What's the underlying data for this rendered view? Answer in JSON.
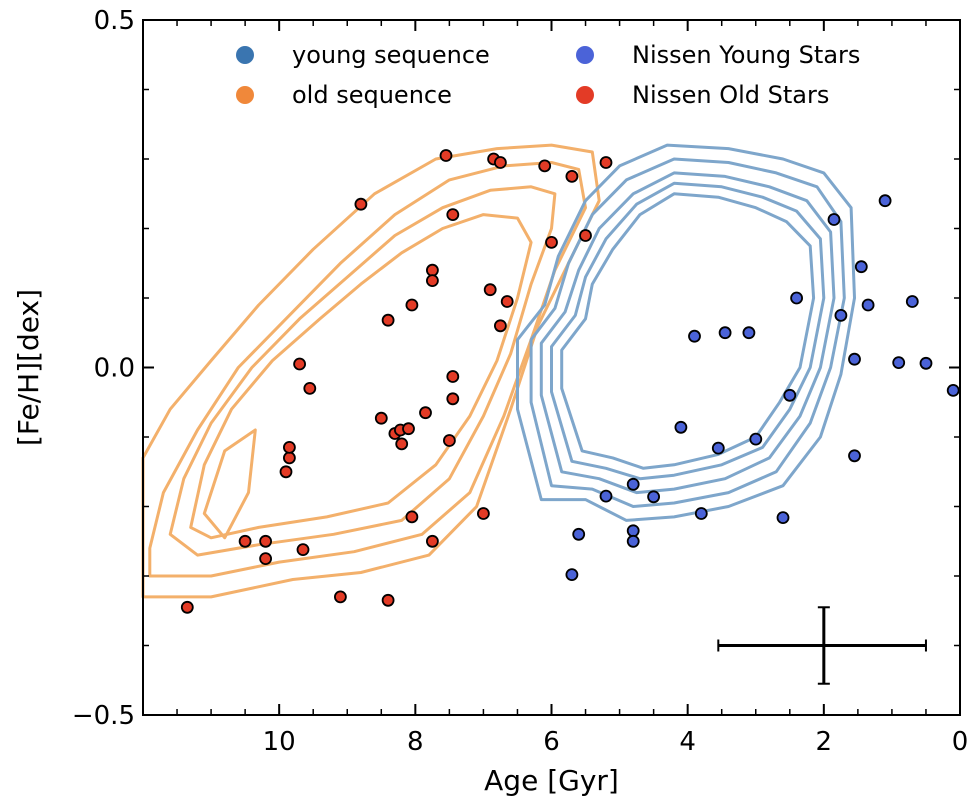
{
  "chart_data": {
    "type": "scatter",
    "xlabel": "Age [Gyr]",
    "ylabel": "[Fe/H][dex]",
    "xlim": [
      12,
      0
    ],
    "ylim": [
      -0.5,
      0.5
    ],
    "x_reversed": true,
    "x_ticks": [
      10,
      8,
      6,
      4,
      2,
      0
    ],
    "x_tick_labels": [
      "10",
      "8",
      "6",
      "4",
      "2",
      "0"
    ],
    "y_ticks": [
      -0.5,
      0.0,
      0.5
    ],
    "y_tick_labels": [
      "−0.5",
      "0.0",
      "0.5"
    ],
    "grid": false,
    "legend": {
      "placement": "top-center",
      "entries": [
        {
          "label": "young sequence",
          "color": "#3a75b0"
        },
        {
          "label": "old sequence",
          "color": "#f0883a"
        },
        {
          "label": "Nissen Young Stars",
          "color": "#4b63d8"
        },
        {
          "label": "Nissen Old Stars",
          "color": "#e33b26"
        }
      ]
    },
    "colors": {
      "young_contour": "#7ea6cb",
      "old_contour": "#f3b06b",
      "young_points": "#4b63d8",
      "old_points": "#e33b26"
    },
    "series": [
      {
        "name": "Nissen Old Stars",
        "points": [
          [
            11.35,
            -0.345
          ],
          [
            10.5,
            -0.25
          ],
          [
            10.2,
            -0.25
          ],
          [
            10.2,
            -0.275
          ],
          [
            9.9,
            -0.15
          ],
          [
            9.85,
            -0.13
          ],
          [
            9.85,
            -0.115
          ],
          [
            9.65,
            -0.262
          ],
          [
            9.7,
            0.005
          ],
          [
            9.55,
            -0.03
          ],
          [
            9.1,
            -0.33
          ],
          [
            8.8,
            0.235
          ],
          [
            8.5,
            -0.073
          ],
          [
            8.4,
            0.068
          ],
          [
            8.4,
            -0.335
          ],
          [
            8.3,
            -0.095
          ],
          [
            8.22,
            -0.09
          ],
          [
            8.2,
            -0.11
          ],
          [
            8.1,
            -0.088
          ],
          [
            8.05,
            0.09
          ],
          [
            8.05,
            -0.215
          ],
          [
            7.85,
            -0.065
          ],
          [
            7.75,
            0.14
          ],
          [
            7.75,
            0.125
          ],
          [
            7.75,
            -0.25
          ],
          [
            7.55,
            0.305
          ],
          [
            7.5,
            -0.105
          ],
          [
            7.45,
            0.22
          ],
          [
            7.45,
            -0.045
          ],
          [
            7.45,
            -0.013
          ],
          [
            7.0,
            -0.21
          ],
          [
            6.9,
            0.112
          ],
          [
            6.85,
            0.3
          ],
          [
            6.75,
            0.295
          ],
          [
            6.75,
            0.06
          ],
          [
            6.65,
            0.095
          ],
          [
            6.1,
            0.29
          ],
          [
            6.0,
            0.18
          ],
          [
            5.7,
            0.275
          ],
          [
            5.5,
            0.19
          ],
          [
            5.2,
            0.295
          ]
        ]
      },
      {
        "name": "Nissen Young Stars",
        "points": [
          [
            5.7,
            -0.298
          ],
          [
            5.6,
            -0.24
          ],
          [
            5.2,
            -0.185
          ],
          [
            4.8,
            -0.168
          ],
          [
            4.8,
            -0.235
          ],
          [
            4.8,
            -0.25
          ],
          [
            4.5,
            -0.186
          ],
          [
            4.1,
            -0.086
          ],
          [
            3.9,
            0.045
          ],
          [
            3.8,
            -0.21
          ],
          [
            3.55,
            -0.116
          ],
          [
            3.45,
            0.05
          ],
          [
            3.1,
            0.05
          ],
          [
            3.0,
            -0.103
          ],
          [
            2.6,
            -0.216
          ],
          [
            2.5,
            -0.04
          ],
          [
            2.4,
            0.1
          ],
          [
            1.85,
            0.213
          ],
          [
            1.75,
            0.075
          ],
          [
            1.55,
            0.012
          ],
          [
            1.55,
            -0.127
          ],
          [
            1.45,
            0.145
          ],
          [
            1.35,
            0.09
          ],
          [
            1.1,
            0.24
          ],
          [
            0.9,
            0.007
          ],
          [
            0.7,
            0.095
          ],
          [
            0.5,
            0.006
          ],
          [
            0.1,
            -0.033
          ]
        ]
      }
    ],
    "error_bar": {
      "x": 2.0,
      "y": -0.4,
      "x_low": 3.55,
      "x_high": 0.5,
      "y_low": -0.455,
      "y_high": -0.345
    },
    "contours": {
      "young_sequence": [
        [
          [
            5.9,
            0.16
          ],
          [
            5.5,
            0.24
          ],
          [
            5.0,
            0.29
          ],
          [
            4.3,
            0.32
          ],
          [
            3.4,
            0.315
          ],
          [
            2.6,
            0.3
          ],
          [
            2.0,
            0.28
          ],
          [
            1.6,
            0.23
          ],
          [
            1.55,
            0.1
          ],
          [
            1.75,
            -0.01
          ],
          [
            2.05,
            -0.1
          ],
          [
            2.6,
            -0.17
          ],
          [
            3.4,
            -0.2
          ],
          [
            4.2,
            -0.215
          ],
          [
            4.9,
            -0.22
          ],
          [
            5.5,
            -0.19
          ],
          [
            6.15,
            -0.19
          ],
          [
            6.5,
            -0.06
          ],
          [
            6.5,
            0.04
          ],
          [
            6.1,
            0.09
          ],
          [
            5.9,
            0.16
          ]
        ],
        [
          [
            5.75,
            0.15
          ],
          [
            5.4,
            0.22
          ],
          [
            4.9,
            0.27
          ],
          [
            4.2,
            0.3
          ],
          [
            3.4,
            0.295
          ],
          [
            2.7,
            0.28
          ],
          [
            2.1,
            0.26
          ],
          [
            1.75,
            0.21
          ],
          [
            1.7,
            0.1
          ],
          [
            1.9,
            0.0
          ],
          [
            2.2,
            -0.08
          ],
          [
            2.7,
            -0.15
          ],
          [
            3.4,
            -0.18
          ],
          [
            4.2,
            -0.195
          ],
          [
            4.8,
            -0.2
          ],
          [
            5.4,
            -0.175
          ],
          [
            6.0,
            -0.17
          ],
          [
            6.3,
            -0.05
          ],
          [
            6.3,
            0.04
          ],
          [
            5.95,
            0.085
          ],
          [
            5.75,
            0.15
          ]
        ],
        [
          [
            5.6,
            0.14
          ],
          [
            5.3,
            0.2
          ],
          [
            4.8,
            0.25
          ],
          [
            4.2,
            0.28
          ],
          [
            3.45,
            0.275
          ],
          [
            2.8,
            0.26
          ],
          [
            2.25,
            0.24
          ],
          [
            1.9,
            0.195
          ],
          [
            1.85,
            0.1
          ],
          [
            2.05,
            0.0
          ],
          [
            2.35,
            -0.07
          ],
          [
            2.8,
            -0.13
          ],
          [
            3.45,
            -0.16
          ],
          [
            4.2,
            -0.175
          ],
          [
            4.75,
            -0.18
          ],
          [
            5.3,
            -0.16
          ],
          [
            5.85,
            -0.15
          ],
          [
            6.15,
            -0.04
          ],
          [
            6.15,
            0.035
          ],
          [
            5.8,
            0.08
          ],
          [
            5.6,
            0.14
          ]
        ],
        [
          [
            5.5,
            0.13
          ],
          [
            5.2,
            0.185
          ],
          [
            4.75,
            0.235
          ],
          [
            4.2,
            0.265
          ],
          [
            3.5,
            0.26
          ],
          [
            2.9,
            0.245
          ],
          [
            2.4,
            0.225
          ],
          [
            2.05,
            0.185
          ],
          [
            2.0,
            0.1
          ],
          [
            2.2,
            0.0
          ],
          [
            2.5,
            -0.06
          ],
          [
            2.9,
            -0.115
          ],
          [
            3.5,
            -0.14
          ],
          [
            4.2,
            -0.155
          ],
          [
            4.7,
            -0.16
          ],
          [
            5.2,
            -0.145
          ],
          [
            5.7,
            -0.135
          ],
          [
            6.0,
            -0.035
          ],
          [
            6.0,
            0.03
          ],
          [
            5.65,
            0.075
          ],
          [
            5.5,
            0.13
          ]
        ],
        [
          [
            5.4,
            0.12
          ],
          [
            5.1,
            0.17
          ],
          [
            4.7,
            0.22
          ],
          [
            4.2,
            0.25
          ],
          [
            3.55,
            0.245
          ],
          [
            3.0,
            0.23
          ],
          [
            2.55,
            0.21
          ],
          [
            2.2,
            0.175
          ],
          [
            2.15,
            0.1
          ],
          [
            2.35,
            0.0
          ],
          [
            2.65,
            -0.05
          ],
          [
            3.0,
            -0.1
          ],
          [
            3.55,
            -0.125
          ],
          [
            4.2,
            -0.14
          ],
          [
            4.65,
            -0.145
          ],
          [
            5.1,
            -0.13
          ],
          [
            5.55,
            -0.12
          ],
          [
            5.85,
            -0.03
          ],
          [
            5.85,
            0.025
          ],
          [
            5.5,
            0.07
          ],
          [
            5.4,
            0.12
          ]
        ]
      ],
      "old_sequence": [
        [
          [
            12.0,
            -0.13
          ],
          [
            11.6,
            -0.06
          ],
          [
            11.0,
            0.01
          ],
          [
            10.3,
            0.09
          ],
          [
            9.5,
            0.17
          ],
          [
            8.6,
            0.25
          ],
          [
            7.7,
            0.3
          ],
          [
            6.8,
            0.315
          ],
          [
            6.0,
            0.32
          ],
          [
            5.4,
            0.31
          ],
          [
            5.3,
            0.24
          ],
          [
            5.8,
            0.14
          ],
          [
            6.2,
            0.06
          ],
          [
            6.6,
            -0.06
          ],
          [
            7.1,
            -0.2
          ],
          [
            7.8,
            -0.27
          ],
          [
            8.8,
            -0.295
          ],
          [
            9.8,
            -0.305
          ],
          [
            11.0,
            -0.33
          ],
          [
            12.0,
            -0.33
          ]
        ],
        [
          [
            11.9,
            -0.26
          ],
          [
            11.7,
            -0.18
          ],
          [
            11.2,
            -0.09
          ],
          [
            10.6,
            0.0
          ],
          [
            9.9,
            0.07
          ],
          [
            9.1,
            0.15
          ],
          [
            8.3,
            0.22
          ],
          [
            7.5,
            0.27
          ],
          [
            6.7,
            0.29
          ],
          [
            6.0,
            0.295
          ],
          [
            5.6,
            0.285
          ],
          [
            5.5,
            0.23
          ],
          [
            5.95,
            0.14
          ],
          [
            6.3,
            0.04
          ],
          [
            6.7,
            -0.07
          ],
          [
            7.2,
            -0.18
          ],
          [
            7.9,
            -0.24
          ],
          [
            8.9,
            -0.265
          ],
          [
            10.0,
            -0.28
          ],
          [
            11.0,
            -0.3
          ],
          [
            11.9,
            -0.3
          ],
          [
            11.9,
            -0.26
          ]
        ],
        [
          [
            11.6,
            -0.24
          ],
          [
            11.4,
            -0.16
          ],
          [
            11.0,
            -0.08
          ],
          [
            10.4,
            0.0
          ],
          [
            9.7,
            0.07
          ],
          [
            9.0,
            0.13
          ],
          [
            8.3,
            0.19
          ],
          [
            7.6,
            0.23
          ],
          [
            6.9,
            0.255
          ],
          [
            6.3,
            0.26
          ],
          [
            5.95,
            0.25
          ],
          [
            6.0,
            0.2
          ],
          [
            6.3,
            0.12
          ],
          [
            6.6,
            0.02
          ],
          [
            7.0,
            -0.07
          ],
          [
            7.5,
            -0.16
          ],
          [
            8.2,
            -0.22
          ],
          [
            9.2,
            -0.24
          ],
          [
            10.3,
            -0.255
          ],
          [
            11.2,
            -0.27
          ],
          [
            11.6,
            -0.24
          ]
        ],
        [
          [
            11.3,
            -0.23
          ],
          [
            11.1,
            -0.14
          ],
          [
            10.7,
            -0.06
          ],
          [
            10.1,
            0.01
          ],
          [
            9.4,
            0.07
          ],
          [
            8.8,
            0.12
          ],
          [
            8.2,
            0.165
          ],
          [
            7.6,
            0.2
          ],
          [
            7.0,
            0.22
          ],
          [
            6.5,
            0.215
          ],
          [
            6.3,
            0.18
          ],
          [
            6.5,
            0.1
          ],
          [
            6.8,
            0.01
          ],
          [
            7.2,
            -0.07
          ],
          [
            7.7,
            -0.14
          ],
          [
            8.4,
            -0.195
          ],
          [
            9.3,
            -0.215
          ],
          [
            10.3,
            -0.23
          ],
          [
            11.0,
            -0.245
          ],
          [
            11.3,
            -0.23
          ]
        ],
        [
          [
            11.1,
            -0.21
          ],
          [
            10.8,
            -0.12
          ],
          [
            10.35,
            -0.09
          ],
          [
            10.45,
            -0.18
          ],
          [
            10.8,
            -0.245
          ],
          [
            11.1,
            -0.21
          ]
        ]
      ]
    }
  }
}
